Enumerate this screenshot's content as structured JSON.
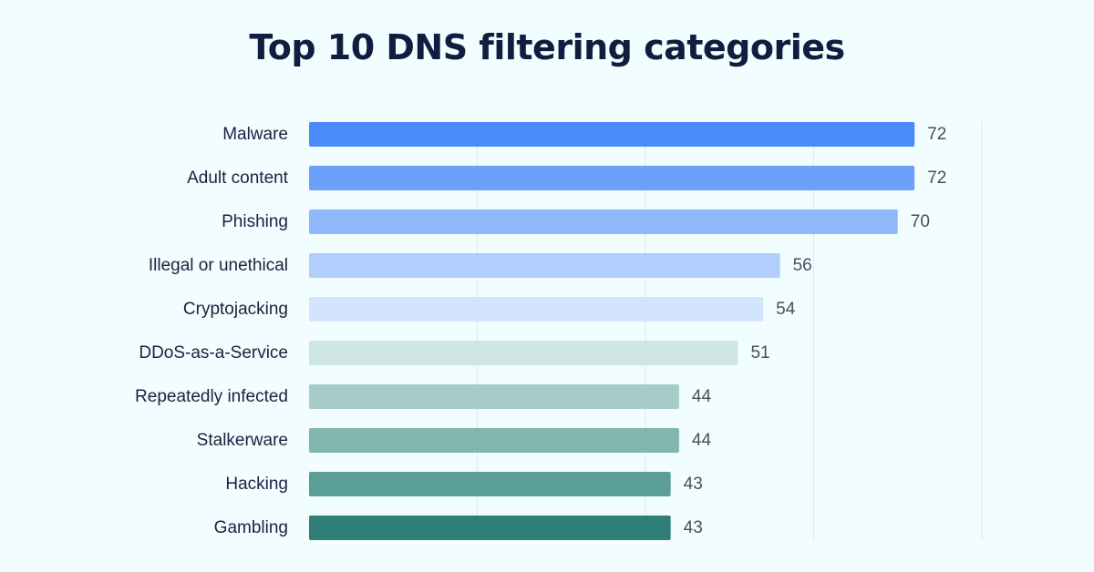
{
  "title": "Top 10 DNS filtering categories",
  "chart_data": {
    "type": "bar",
    "orientation": "horizontal",
    "title": "Top 10 DNS filtering categories",
    "xlabel": "",
    "ylabel": "",
    "xlim": [
      0,
      80
    ],
    "grid": true,
    "legend": "none",
    "categories": [
      "Malware",
      "Adult content",
      "Phishing",
      "Illegal or unethical",
      "Cryptojacking",
      "DDoS-as-a-Service",
      "Repeatedly infected",
      "Stalkerware",
      "Hacking",
      "Gambling"
    ],
    "values": [
      72,
      72,
      70,
      56,
      54,
      51,
      44,
      44,
      43,
      43
    ],
    "colors": [
      "#4a8bfa",
      "#6da0fb",
      "#90b8fb",
      "#b1cefc",
      "#d3e4fd",
      "#cde6e5",
      "#a6cdca",
      "#80b6b0",
      "#5a9e96",
      "#2f7f78"
    ]
  }
}
